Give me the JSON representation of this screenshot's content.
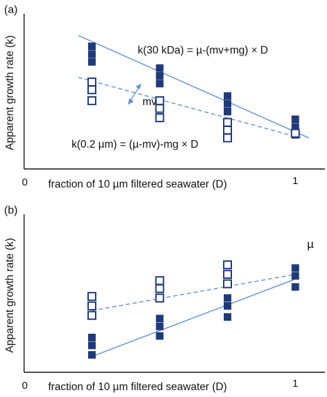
{
  "colors": {
    "axis": "#111111",
    "series": "#1f3a7a",
    "fit_line": "#5b8fd6"
  },
  "chart_data": [
    {
      "type": "scatter",
      "panel_label": "(a)",
      "xlabel": "fraction of 10 µm filtered seawater (D)",
      "ylabel": "Apparent growth rate (k)",
      "x_ticks": [
        "0",
        "1"
      ],
      "xlim": [
        0,
        1.12
      ],
      "ylim": [
        0,
        10
      ],
      "grid": false,
      "series": [
        {
          "name": "k(30 kDa)",
          "marker": "filled-square",
          "line_style": "solid",
          "points": [
            {
              "x": 0.25,
              "y": 7.9
            },
            {
              "x": 0.25,
              "y": 7.4
            },
            {
              "x": 0.25,
              "y": 6.9
            },
            {
              "x": 0.5,
              "y": 6.5
            },
            {
              "x": 0.5,
              "y": 6.0
            },
            {
              "x": 0.5,
              "y": 5.5
            },
            {
              "x": 0.75,
              "y": 4.7
            },
            {
              "x": 0.75,
              "y": 4.2
            },
            {
              "x": 0.75,
              "y": 3.7
            },
            {
              "x": 1.0,
              "y": 3.2
            },
            {
              "x": 1.0,
              "y": 2.7
            },
            {
              "x": 1.0,
              "y": 2.2
            }
          ],
          "fit": {
            "x": [
              0.2,
              1.05
            ],
            "y": [
              8.6,
              2.0
            ]
          }
        },
        {
          "name": "k(0.2 µm)",
          "marker": "open-square",
          "line_style": "dashed",
          "points": [
            {
              "x": 0.25,
              "y": 5.6
            },
            {
              "x": 0.25,
              "y": 5.1
            },
            {
              "x": 0.25,
              "y": 4.4
            },
            {
              "x": 0.5,
              "y": 4.4
            },
            {
              "x": 0.5,
              "y": 3.9
            },
            {
              "x": 0.5,
              "y": 3.3
            },
            {
              "x": 0.75,
              "y": 3.0
            },
            {
              "x": 0.75,
              "y": 2.5
            },
            {
              "x": 0.75,
              "y": 2.0
            },
            {
              "x": 1.0,
              "y": 2.3
            }
          ],
          "fit": {
            "x": [
              0.2,
              1.02
            ],
            "y": [
              5.9,
              2.0
            ]
          }
        }
      ],
      "annotations": [
        {
          "text": "k(30 kDa) = µ-(mv+mg) × D"
        },
        {
          "text": "mv"
        },
        {
          "text": "k(0.2 µm) = (µ-mv)-mg × D"
        }
      ]
    },
    {
      "type": "scatter",
      "panel_label": "(b)",
      "xlabel": "fraction of 10 µm filtered seawater (D)",
      "ylabel": "Apparent growth rate (k)",
      "x_ticks": [
        "0",
        "1"
      ],
      "xlim": [
        0,
        1.12
      ],
      "ylim": [
        0,
        10
      ],
      "grid": false,
      "series": [
        {
          "name": "k(30 kDa)",
          "marker": "filled-square",
          "line_style": "solid",
          "points": [
            {
              "x": 0.25,
              "y": 2.2
            },
            {
              "x": 0.25,
              "y": 1.7
            },
            {
              "x": 0.25,
              "y": 1.1
            },
            {
              "x": 0.5,
              "y": 3.4
            },
            {
              "x": 0.5,
              "y": 2.9
            },
            {
              "x": 0.5,
              "y": 2.3
            },
            {
              "x": 0.75,
              "y": 4.7
            },
            {
              "x": 0.75,
              "y": 4.2
            },
            {
              "x": 0.75,
              "y": 3.5
            },
            {
              "x": 1.0,
              "y": 6.6
            },
            {
              "x": 1.0,
              "y": 6.1
            },
            {
              "x": 1.0,
              "y": 5.4
            }
          ],
          "fit": {
            "x": [
              0.25,
              1.0
            ],
            "y": [
              1.0,
              5.9
            ]
          }
        },
        {
          "name": "k(0.2 µm)",
          "marker": "open-square",
          "line_style": "dashed",
          "points": [
            {
              "x": 0.25,
              "y": 4.8
            },
            {
              "x": 0.25,
              "y": 4.2
            },
            {
              "x": 0.25,
              "y": 3.6
            },
            {
              "x": 0.5,
              "y": 5.8
            },
            {
              "x": 0.5,
              "y": 5.3
            },
            {
              "x": 0.5,
              "y": 4.7
            },
            {
              "x": 0.75,
              "y": 6.8
            },
            {
              "x": 0.75,
              "y": 6.2
            },
            {
              "x": 0.75,
              "y": 5.6
            }
          ],
          "fit": {
            "x": [
              0.25,
              1.0
            ],
            "y": [
              3.9,
              6.2
            ]
          }
        }
      ],
      "annotations": [
        {
          "text": "µ"
        }
      ]
    }
  ]
}
